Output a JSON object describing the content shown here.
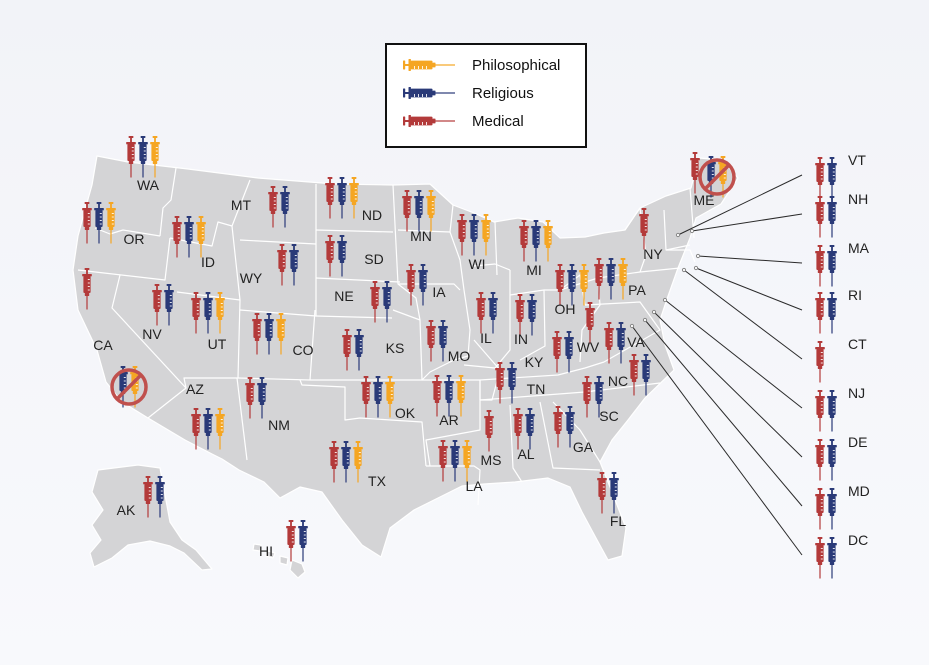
{
  "colors": {
    "philosophical": "#f5a623",
    "religious": "#2a3a78",
    "medical": "#b33a3a",
    "land": "#d4d4d6",
    "border": "#ffffff",
    "banned": "#c0504d"
  },
  "legend": [
    {
      "key": "philosophical",
      "label": "Philosophical"
    },
    {
      "key": "religious",
      "label": "Religious"
    },
    {
      "key": "medical",
      "label": "Medical"
    }
  ],
  "states": [
    {
      "abbr": "WA",
      "exemptions": [
        "medical",
        "religious",
        "philosophical"
      ]
    },
    {
      "abbr": "OR",
      "exemptions": [
        "medical",
        "religious",
        "philosophical"
      ]
    },
    {
      "abbr": "CA",
      "exemptions": [
        "medical"
      ]
    },
    {
      "abbr": "NV",
      "exemptions": [
        "medical",
        "religious"
      ]
    },
    {
      "abbr": "ID",
      "exemptions": [
        "medical",
        "religious",
        "philosophical"
      ]
    },
    {
      "abbr": "MT",
      "exemptions": [
        "medical",
        "religious"
      ]
    },
    {
      "abbr": "WY",
      "exemptions": [
        "medical",
        "religious"
      ]
    },
    {
      "abbr": "UT",
      "exemptions": [
        "medical",
        "religious",
        "philosophical"
      ]
    },
    {
      "abbr": "AZ",
      "exemptions": [
        "medical",
        "religious",
        "philosophical"
      ]
    },
    {
      "abbr": "CO",
      "exemptions": [
        "medical",
        "religious",
        "philosophical"
      ]
    },
    {
      "abbr": "NM",
      "exemptions": [
        "medical",
        "religious"
      ]
    },
    {
      "abbr": "ND",
      "exemptions": [
        "medical",
        "religious",
        "philosophical"
      ]
    },
    {
      "abbr": "SD",
      "exemptions": [
        "medical",
        "religious"
      ]
    },
    {
      "abbr": "NE",
      "exemptions": [
        "medical",
        "religious"
      ]
    },
    {
      "abbr": "KS",
      "exemptions": [
        "medical",
        "religious"
      ]
    },
    {
      "abbr": "OK",
      "exemptions": [
        "medical",
        "religious",
        "philosophical"
      ]
    },
    {
      "abbr": "TX",
      "exemptions": [
        "medical",
        "religious",
        "philosophical"
      ]
    },
    {
      "abbr": "MN",
      "exemptions": [
        "medical",
        "religious",
        "philosophical"
      ]
    },
    {
      "abbr": "IA",
      "exemptions": [
        "medical",
        "religious"
      ]
    },
    {
      "abbr": "MO",
      "exemptions": [
        "medical",
        "religious"
      ]
    },
    {
      "abbr": "AR",
      "exemptions": [
        "medical",
        "religious",
        "philosophical"
      ]
    },
    {
      "abbr": "LA",
      "exemptions": [
        "medical",
        "religious",
        "philosophical"
      ]
    },
    {
      "abbr": "WI",
      "exemptions": [
        "medical",
        "religious",
        "philosophical"
      ]
    },
    {
      "abbr": "IL",
      "exemptions": [
        "medical",
        "religious"
      ]
    },
    {
      "abbr": "MI",
      "exemptions": [
        "medical",
        "religious",
        "philosophical"
      ]
    },
    {
      "abbr": "IN",
      "exemptions": [
        "medical",
        "religious"
      ]
    },
    {
      "abbr": "KY",
      "exemptions": [
        "medical",
        "religious"
      ]
    },
    {
      "abbr": "TN",
      "exemptions": [
        "medical",
        "religious"
      ]
    },
    {
      "abbr": "MS",
      "exemptions": [
        "medical"
      ]
    },
    {
      "abbr": "AL",
      "exemptions": [
        "medical",
        "religious"
      ]
    },
    {
      "abbr": "GA",
      "exemptions": [
        "medical",
        "religious"
      ]
    },
    {
      "abbr": "FL",
      "exemptions": [
        "medical",
        "religious"
      ]
    },
    {
      "abbr": "SC",
      "exemptions": [
        "medical",
        "religious"
      ]
    },
    {
      "abbr": "NC",
      "exemptions": [
        "medical",
        "religious"
      ]
    },
    {
      "abbr": "VA",
      "exemptions": [
        "medical",
        "religious"
      ]
    },
    {
      "abbr": "WV",
      "exemptions": [
        "medical"
      ]
    },
    {
      "abbr": "OH",
      "exemptions": [
        "medical",
        "religious",
        "philosophical"
      ]
    },
    {
      "abbr": "PA",
      "exemptions": [
        "medical",
        "religious",
        "philosophical"
      ]
    },
    {
      "abbr": "NY",
      "exemptions": [
        "medical"
      ]
    },
    {
      "abbr": "ME",
      "exemptions": [
        "medical"
      ]
    },
    {
      "abbr": "AK",
      "exemptions": [
        "medical",
        "religious"
      ]
    },
    {
      "abbr": "HI",
      "exemptions": [
        "medical",
        "religious"
      ]
    }
  ],
  "banned": [
    {
      "abbr": "CA",
      "exemptions": [
        "religious",
        "philosophical"
      ]
    },
    {
      "abbr": "ME",
      "exemptions": [
        "religious",
        "philosophical"
      ]
    }
  ],
  "callouts": [
    {
      "abbr": "VT",
      "exemptions": [
        "medical",
        "religious"
      ]
    },
    {
      "abbr": "NH",
      "exemptions": [
        "medical",
        "religious"
      ]
    },
    {
      "abbr": "MA",
      "exemptions": [
        "medical",
        "religious"
      ]
    },
    {
      "abbr": "RI",
      "exemptions": [
        "medical",
        "religious"
      ]
    },
    {
      "abbr": "CT",
      "exemptions": [
        "medical"
      ]
    },
    {
      "abbr": "NJ",
      "exemptions": [
        "medical",
        "religious"
      ]
    },
    {
      "abbr": "DE",
      "exemptions": [
        "medical",
        "religious"
      ]
    },
    {
      "abbr": "MD",
      "exemptions": [
        "medical",
        "religious"
      ]
    },
    {
      "abbr": "DC",
      "exemptions": [
        "medical",
        "religious"
      ]
    }
  ]
}
